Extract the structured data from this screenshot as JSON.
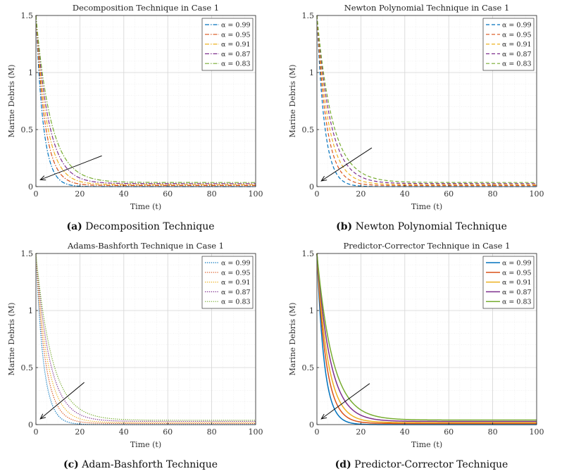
{
  "chart_data": [
    {
      "id": "a",
      "type": "line",
      "title": "Decomposition Technique in Case 1",
      "xlabel": "Time (t)",
      "ylabel": "Marine Debris (M)",
      "xlim": [
        0,
        100
      ],
      "ylim": [
        0,
        1.5
      ],
      "xticks": [
        "0",
        "20",
        "40",
        "60",
        "80",
        "100"
      ],
      "yticks": [
        "0",
        "0.5",
        "1",
        "1.5"
      ],
      "grid": true,
      "legend_position": "top-right",
      "line_style": "dashdot",
      "caption_label": "(a)",
      "caption_text": "Decomposition Technique",
      "arrow": {
        "from": [
          30,
          0.27
        ],
        "to": [
          2,
          0.06
        ]
      },
      "series": [
        {
          "name": "α = 0.99",
          "M0": 1.5,
          "rate": 0.3,
          "tail": 0.0
        },
        {
          "name": "α = 0.95",
          "M0": 1.5,
          "rate": 0.24,
          "tail": 0.01
        },
        {
          "name": "α = 0.91",
          "M0": 1.5,
          "rate": 0.2,
          "tail": 0.018
        },
        {
          "name": "α = 0.87",
          "M0": 1.5,
          "rate": 0.17,
          "tail": 0.026
        },
        {
          "name": "α = 0.83",
          "M0": 1.5,
          "rate": 0.145,
          "tail": 0.036
        }
      ]
    },
    {
      "id": "b",
      "type": "line",
      "title": "Newton Polynomial Technique in Case 1",
      "xlabel": "Time (t)",
      "ylabel": "Marine Debris (M)",
      "xlim": [
        0,
        100
      ],
      "ylim": [
        0,
        1.5
      ],
      "xticks": [
        "0",
        "20",
        "40",
        "60",
        "80",
        "100"
      ],
      "yticks": [
        "0",
        "0.5",
        "1",
        "1.5"
      ],
      "grid": true,
      "legend_position": "top-right",
      "line_style": "dashed",
      "caption_label": "(b)",
      "caption_text": "Newton Polynomial Technique",
      "arrow": {
        "from": [
          25,
          0.34
        ],
        "to": [
          2,
          0.05
        ]
      },
      "series": [
        {
          "name": "α = 0.99",
          "M0": 1.5,
          "rate": 0.29,
          "tail": 0.0
        },
        {
          "name": "α = 0.95",
          "M0": 1.5,
          "rate": 0.23,
          "tail": 0.01
        },
        {
          "name": "α = 0.91",
          "M0": 1.5,
          "rate": 0.19,
          "tail": 0.018
        },
        {
          "name": "α = 0.87",
          "M0": 1.5,
          "rate": 0.16,
          "tail": 0.026
        },
        {
          "name": "α = 0.83",
          "M0": 1.5,
          "rate": 0.14,
          "tail": 0.036
        }
      ]
    },
    {
      "id": "c",
      "type": "line",
      "title": "Adams-Bashforth Technique in Case 1",
      "xlabel": "Time (t)",
      "ylabel": "Marine Debris (M)",
      "xlim": [
        0,
        100
      ],
      "ylim": [
        0,
        1.5
      ],
      "xticks": [
        "0",
        "20",
        "40",
        "60",
        "80",
        "100"
      ],
      "yticks": [
        "0",
        "0.5",
        "1",
        "1.5"
      ],
      "grid": true,
      "legend_position": "top-right",
      "line_style": "dotted",
      "caption_label": "(c)",
      "caption_text": "Adam-Bashforth Technique",
      "arrow": {
        "from": [
          22,
          0.37
        ],
        "to": [
          2,
          0.05
        ]
      },
      "series": [
        {
          "name": "α = 0.99",
          "M0": 1.5,
          "rate": 0.29,
          "tail": 0.0
        },
        {
          "name": "α = 0.95",
          "M0": 1.5,
          "rate": 0.23,
          "tail": 0.01
        },
        {
          "name": "α = 0.91",
          "M0": 1.5,
          "rate": 0.19,
          "tail": 0.018
        },
        {
          "name": "α = 0.87",
          "M0": 1.5,
          "rate": 0.16,
          "tail": 0.028
        },
        {
          "name": "α = 0.83",
          "M0": 1.5,
          "rate": 0.135,
          "tail": 0.038
        }
      ]
    },
    {
      "id": "d",
      "type": "line",
      "title": "Predictor-Corrector Technique in Case 1",
      "xlabel": "Time (t)",
      "ylabel": "Marine Debris (M)",
      "xlim": [
        0,
        100
      ],
      "ylim": [
        0,
        1.5
      ],
      "xticks": [
        "0",
        "20",
        "40",
        "60",
        "80",
        "100"
      ],
      "yticks": [
        "0",
        "0.5",
        "1",
        "1.5"
      ],
      "grid": true,
      "legend_position": "top-right",
      "line_style": "solid",
      "caption_label": "(d)",
      "caption_text": "Predictor-Corrector Technique",
      "arrow": {
        "from": [
          24,
          0.36
        ],
        "to": [
          2,
          0.05
        ]
      },
      "series": [
        {
          "name": "α = 0.99",
          "M0": 1.5,
          "rate": 0.3,
          "tail": 0.0
        },
        {
          "name": "α = 0.95",
          "M0": 1.5,
          "rate": 0.24,
          "tail": 0.01
        },
        {
          "name": "α = 0.91",
          "M0": 1.5,
          "rate": 0.2,
          "tail": 0.018
        },
        {
          "name": "α = 0.87",
          "M0": 1.5,
          "rate": 0.165,
          "tail": 0.028
        },
        {
          "name": "α = 0.83",
          "M0": 1.5,
          "rate": 0.14,
          "tail": 0.04
        }
      ]
    }
  ],
  "colors": {
    "series": [
      "#0072bd",
      "#d95319",
      "#edb120",
      "#7e2f8e",
      "#77ac30"
    ],
    "grid": "#dddddd",
    "axis": "#262626"
  }
}
